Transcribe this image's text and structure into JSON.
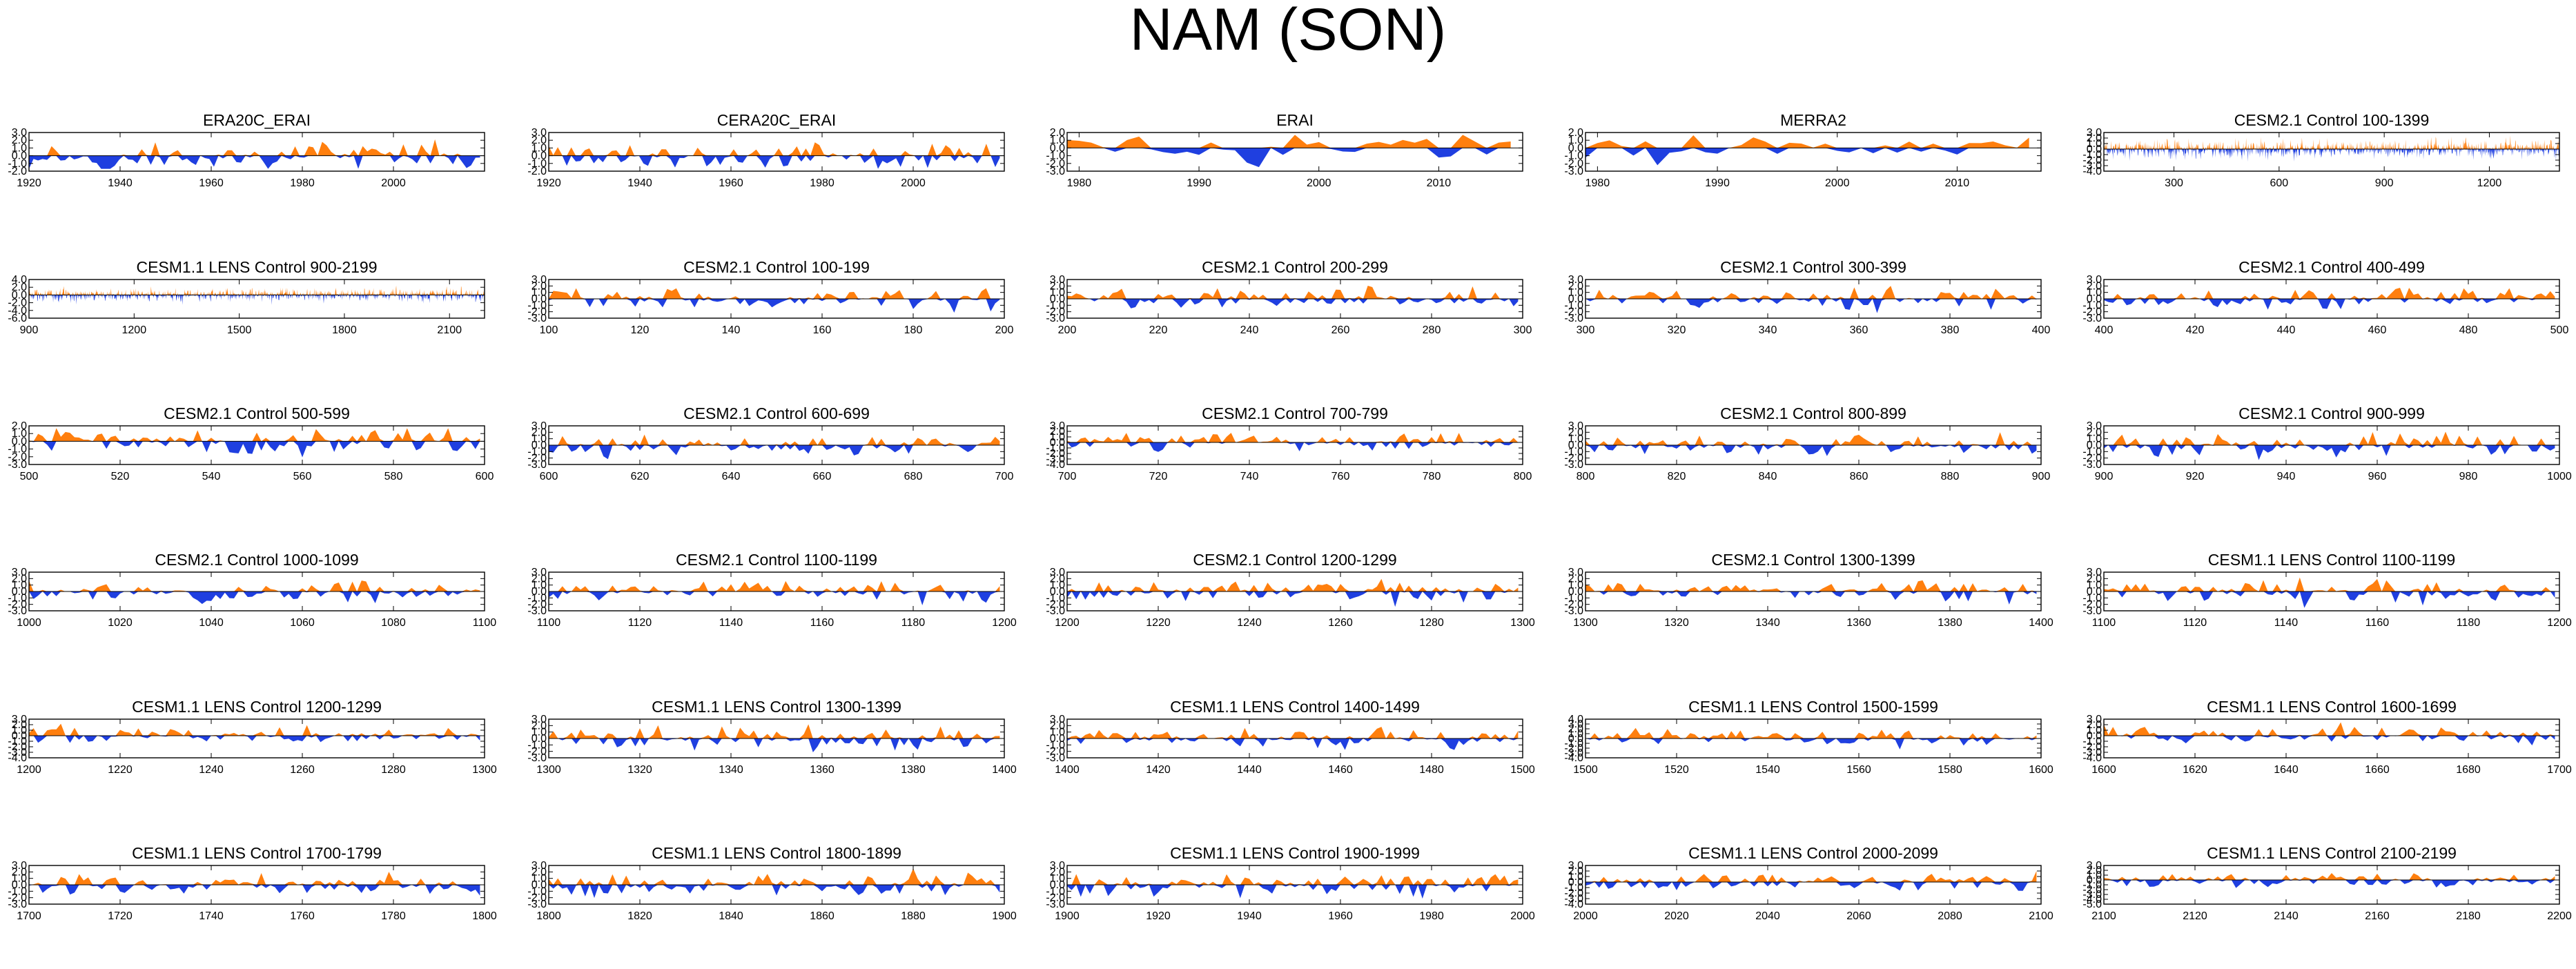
{
  "title": "NAM (SON)",
  "colors": {
    "positive": "#ff7f0e",
    "negative": "#1f3fe0",
    "frame": "#000000"
  },
  "chart_data": [
    {
      "type": "area",
      "title": "ERA20C_ERAI",
      "xlim": [
        1920,
        2020
      ],
      "ylim": [
        -2,
        3
      ],
      "yticks": [
        "3.0",
        "2.0",
        "1.0",
        "0.0",
        "-1.0",
        "-2.0"
      ],
      "xticks": [
        1920,
        1940,
        1960,
        1980,
        2000
      ],
      "x_start": 1920,
      "n": 101,
      "seed": 11,
      "scale": 1.1
    },
    {
      "type": "area",
      "title": "CERA20C_ERAI",
      "xlim": [
        1920,
        2020
      ],
      "ylim": [
        -2,
        3
      ],
      "yticks": [
        "3.0",
        "2.0",
        "1.0",
        "0.0",
        "-1.0",
        "-2.0"
      ],
      "xticks": [
        1920,
        1940,
        1960,
        1980,
        2000
      ],
      "x_start": 1920,
      "n": 101,
      "seed": 12,
      "scale": 1.1
    },
    {
      "type": "area",
      "title": "ERAI",
      "xlim": [
        1979,
        2017
      ],
      "ylim": [
        -3,
        2
      ],
      "yticks": [
        "2.0",
        "1.0",
        "0.0",
        "-1.0",
        "-2.0",
        "-3.0"
      ],
      "xticks": [
        1980,
        1990,
        2000,
        2010
      ],
      "x_start": 1979,
      "n": 38,
      "seed": 13,
      "scale": 1.0
    },
    {
      "type": "area",
      "title": "MERRA2",
      "xlim": [
        1979,
        2017
      ],
      "ylim": [
        -3,
        2
      ],
      "yticks": [
        "2.0",
        "1.0",
        "0.0",
        "-1.0",
        "-2.0",
        "-3.0"
      ],
      "xticks": [
        1980,
        1990,
        2000,
        2010
      ],
      "x_start": 1979,
      "n": 38,
      "seed": 14,
      "scale": 1.0
    },
    {
      "type": "area",
      "title": "CESM2.1 Control 100-1399",
      "xlim": [
        100,
        1400
      ],
      "ylim": [
        -4,
        3
      ],
      "yticks": [
        "3.0",
        "2.0",
        "1.0",
        "0.0",
        "-1.0",
        "-2.0",
        "-3.0",
        "-4.0"
      ],
      "xticks": [
        300,
        600,
        900,
        1200
      ],
      "x_start": 100,
      "n": 1300,
      "seed": 15,
      "scale": 1.0
    },
    {
      "type": "area",
      "title": "CESM1.1 LENS Control 900-2199",
      "xlim": [
        900,
        2200
      ],
      "ylim": [
        -6,
        4
      ],
      "yticks": [
        "4.0",
        "2.0",
        "0.0",
        "-2.0",
        "-4.0",
        "-6.0"
      ],
      "xticks": [
        900,
        1200,
        1500,
        1800,
        2100
      ],
      "x_start": 900,
      "n": 1300,
      "seed": 21,
      "scale": 1.0
    },
    {
      "type": "area",
      "title": "CESM2.1 Control 100-199",
      "xlim": [
        100,
        200
      ],
      "ylim": [
        -3,
        3
      ],
      "yticks": [
        "3.0",
        "2.0",
        "1.0",
        "0.0",
        "-1.0",
        "-2.0",
        "-3.0"
      ],
      "xticks": [
        100,
        120,
        140,
        160,
        180,
        200
      ],
      "x_start": 100,
      "n": 100,
      "seed": 22,
      "scale": 1.0
    },
    {
      "type": "area",
      "title": "CESM2.1 Control 200-299",
      "xlim": [
        200,
        300
      ],
      "ylim": [
        -3,
        3
      ],
      "yticks": [
        "3.0",
        "2.0",
        "1.0",
        "0.0",
        "-1.0",
        "-2.0",
        "-3.0"
      ],
      "xticks": [
        200,
        220,
        240,
        260,
        280,
        300
      ],
      "x_start": 200,
      "n": 100,
      "seed": 23,
      "scale": 1.0
    },
    {
      "type": "area",
      "title": "CESM2.1 Control 300-399",
      "xlim": [
        300,
        400
      ],
      "ylim": [
        -3,
        3
      ],
      "yticks": [
        "3.0",
        "2.0",
        "1.0",
        "0.0",
        "-1.0",
        "-2.0",
        "-3.0"
      ],
      "xticks": [
        300,
        320,
        340,
        360,
        380,
        400
      ],
      "x_start": 300,
      "n": 100,
      "seed": 24,
      "scale": 1.0
    },
    {
      "type": "area",
      "title": "CESM2.1 Control 400-499",
      "xlim": [
        400,
        500
      ],
      "ylim": [
        -3,
        3
      ],
      "yticks": [
        "3.0",
        "2.0",
        "1.0",
        "0.0",
        "-1.0",
        "-2.0",
        "-3.0"
      ],
      "xticks": [
        400,
        420,
        440,
        460,
        480,
        500
      ],
      "x_start": 400,
      "n": 100,
      "seed": 25,
      "scale": 1.0
    },
    {
      "type": "area",
      "title": "CESM2.1 Control 500-599",
      "xlim": [
        500,
        600
      ],
      "ylim": [
        -3,
        2
      ],
      "yticks": [
        "2.0",
        "1.0",
        "0.0",
        "-1.0",
        "-2.0",
        "-3.0"
      ],
      "xticks": [
        500,
        520,
        540,
        560,
        580,
        600
      ],
      "x_start": 500,
      "n": 100,
      "seed": 31,
      "scale": 1.0
    },
    {
      "type": "area",
      "title": "CESM2.1 Control 600-699",
      "xlim": [
        600,
        700
      ],
      "ylim": [
        -3,
        3
      ],
      "yticks": [
        "3.0",
        "2.0",
        "1.0",
        "0.0",
        "-1.0",
        "-2.0",
        "-3.0"
      ],
      "xticks": [
        600,
        620,
        640,
        660,
        680,
        700
      ],
      "x_start": 600,
      "n": 100,
      "seed": 32,
      "scale": 1.0
    },
    {
      "type": "area",
      "title": "CESM2.1 Control 700-799",
      "xlim": [
        700,
        800
      ],
      "ylim": [
        -4,
        3
      ],
      "yticks": [
        "3.0",
        "2.0",
        "1.0",
        "0.0",
        "-1.0",
        "-2.0",
        "-3.0",
        "-4.0"
      ],
      "xticks": [
        700,
        720,
        740,
        760,
        780,
        800
      ],
      "x_start": 700,
      "n": 100,
      "seed": 33,
      "scale": 1.0
    },
    {
      "type": "area",
      "title": "CESM2.1 Control 800-899",
      "xlim": [
        800,
        900
      ],
      "ylim": [
        -3,
        3
      ],
      "yticks": [
        "3.0",
        "2.0",
        "1.0",
        "0.0",
        "-1.0",
        "-2.0",
        "-3.0"
      ],
      "xticks": [
        800,
        820,
        840,
        860,
        880,
        900
      ],
      "x_start": 800,
      "n": 100,
      "seed": 34,
      "scale": 1.0
    },
    {
      "type": "area",
      "title": "CESM2.1 Control 900-999",
      "xlim": [
        900,
        1000
      ],
      "ylim": [
        -3,
        3
      ],
      "yticks": [
        "3.0",
        "2.0",
        "1.0",
        "0.0",
        "-1.0",
        "-2.0",
        "-3.0"
      ],
      "xticks": [
        900,
        920,
        940,
        960,
        980,
        1000
      ],
      "x_start": 900,
      "n": 100,
      "seed": 35,
      "scale": 1.0
    },
    {
      "type": "area",
      "title": "CESM2.1 Control 1000-1099",
      "xlim": [
        1000,
        1100
      ],
      "ylim": [
        -3,
        3
      ],
      "yticks": [
        "3.0",
        "2.0",
        "1.0",
        "0.0",
        "-1.0",
        "-2.0",
        "-3.0"
      ],
      "xticks": [
        1000,
        1020,
        1040,
        1060,
        1080,
        1100
      ],
      "x_start": 1000,
      "n": 100,
      "seed": 41,
      "scale": 1.0
    },
    {
      "type": "area",
      "title": "CESM2.1 Control 1100-1199",
      "xlim": [
        1100,
        1200
      ],
      "ylim": [
        -3,
        3
      ],
      "yticks": [
        "3.0",
        "2.0",
        "1.0",
        "0.0",
        "-1.0",
        "-2.0",
        "-3.0"
      ],
      "xticks": [
        1100,
        1120,
        1140,
        1160,
        1180,
        1200
      ],
      "x_start": 1100,
      "n": 100,
      "seed": 42,
      "scale": 1.0
    },
    {
      "type": "area",
      "title": "CESM2.1 Control 1200-1299",
      "xlim": [
        1200,
        1300
      ],
      "ylim": [
        -3,
        3
      ],
      "yticks": [
        "3.0",
        "2.0",
        "1.0",
        "0.0",
        "-1.0",
        "-2.0",
        "-3.0"
      ],
      "xticks": [
        1200,
        1220,
        1240,
        1260,
        1280,
        1300
      ],
      "x_start": 1200,
      "n": 100,
      "seed": 43,
      "scale": 1.0
    },
    {
      "type": "area",
      "title": "CESM2.1 Control 1300-1399",
      "xlim": [
        1300,
        1400
      ],
      "ylim": [
        -3,
        3
      ],
      "yticks": [
        "3.0",
        "2.0",
        "1.0",
        "0.0",
        "-1.0",
        "-2.0",
        "-3.0"
      ],
      "xticks": [
        1300,
        1320,
        1340,
        1360,
        1380,
        1400
      ],
      "x_start": 1300,
      "n": 100,
      "seed": 44,
      "scale": 1.0
    },
    {
      "type": "area",
      "title": "CESM1.1 LENS Control 1100-1199",
      "xlim": [
        1100,
        1200
      ],
      "ylim": [
        -3,
        3
      ],
      "yticks": [
        "3.0",
        "2.0",
        "1.0",
        "0.0",
        "-1.0",
        "-2.0",
        "-3.0"
      ],
      "xticks": [
        1100,
        1120,
        1140,
        1160,
        1180,
        1200
      ],
      "x_start": 1100,
      "n": 100,
      "seed": 45,
      "scale": 1.0
    },
    {
      "type": "area",
      "title": "CESM1.1 LENS Control 1200-1299",
      "xlim": [
        1200,
        1300
      ],
      "ylim": [
        -4,
        3
      ],
      "yticks": [
        "3.0",
        "2.0",
        "1.0",
        "0.0",
        "-1.0",
        "-2.0",
        "-3.0",
        "-4.0"
      ],
      "xticks": [
        1200,
        1220,
        1240,
        1260,
        1280,
        1300
      ],
      "x_start": 1200,
      "n": 100,
      "seed": 51,
      "scale": 1.0
    },
    {
      "type": "area",
      "title": "CESM1.1 LENS Control 1300-1399",
      "xlim": [
        1300,
        1400
      ],
      "ylim": [
        -3,
        3
      ],
      "yticks": [
        "3.0",
        "2.0",
        "1.0",
        "0.0",
        "-1.0",
        "-2.0",
        "-3.0"
      ],
      "xticks": [
        1300,
        1320,
        1340,
        1360,
        1380,
        1400
      ],
      "x_start": 1300,
      "n": 100,
      "seed": 52,
      "scale": 1.0
    },
    {
      "type": "area",
      "title": "CESM1.1 LENS Control 1400-1499",
      "xlim": [
        1400,
        1500
      ],
      "ylim": [
        -3,
        3
      ],
      "yticks": [
        "3.0",
        "2.0",
        "1.0",
        "0.0",
        "-1.0",
        "-2.0",
        "-3.0"
      ],
      "xticks": [
        1400,
        1420,
        1440,
        1460,
        1480,
        1500
      ],
      "x_start": 1400,
      "n": 100,
      "seed": 53,
      "scale": 1.0
    },
    {
      "type": "area",
      "title": "CESM1.1 LENS Control 1500-1599",
      "xlim": [
        1500,
        1600
      ],
      "ylim": [
        -4,
        4
      ],
      "yticks": [
        "4.0",
        "3.0",
        "2.0",
        "1.0",
        "0.0",
        "-1.0",
        "-2.0",
        "-3.0",
        "-4.0"
      ],
      "xticks": [
        1500,
        1520,
        1540,
        1560,
        1580,
        1600
      ],
      "x_start": 1500,
      "n": 100,
      "seed": 54,
      "scale": 1.0
    },
    {
      "type": "area",
      "title": "CESM1.1 LENS Control 1600-1699",
      "xlim": [
        1600,
        1700
      ],
      "ylim": [
        -4,
        3
      ],
      "yticks": [
        "3.0",
        "2.0",
        "1.0",
        "0.0",
        "-1.0",
        "-2.0",
        "-3.0",
        "-4.0"
      ],
      "xticks": [
        1600,
        1620,
        1640,
        1660,
        1680,
        1700
      ],
      "x_start": 1600,
      "n": 100,
      "seed": 55,
      "scale": 1.0
    },
    {
      "type": "area",
      "title": "CESM1.1 LENS Control 1700-1799",
      "xlim": [
        1700,
        1800
      ],
      "ylim": [
        -3,
        3
      ],
      "yticks": [
        "3.0",
        "2.0",
        "1.0",
        "0.0",
        "-1.0",
        "-2.0",
        "-3.0"
      ],
      "xticks": [
        1700,
        1720,
        1740,
        1760,
        1780,
        1800
      ],
      "x_start": 1700,
      "n": 100,
      "seed": 61,
      "scale": 1.0
    },
    {
      "type": "area",
      "title": "CESM1.1 LENS Control 1800-1899",
      "xlim": [
        1800,
        1900
      ],
      "ylim": [
        -3,
        3
      ],
      "yticks": [
        "3.0",
        "2.0",
        "1.0",
        "0.0",
        "-1.0",
        "-2.0",
        "-3.0"
      ],
      "xticks": [
        1800,
        1820,
        1840,
        1860,
        1880,
        1900
      ],
      "x_start": 1800,
      "n": 100,
      "seed": 62,
      "scale": 1.0
    },
    {
      "type": "area",
      "title": "CESM1.1 LENS Control 1900-1999",
      "xlim": [
        1900,
        2000
      ],
      "ylim": [
        -3,
        3
      ],
      "yticks": [
        "3.0",
        "2.0",
        "1.0",
        "0.0",
        "-1.0",
        "-2.0",
        "-3.0"
      ],
      "xticks": [
        1900,
        1920,
        1940,
        1960,
        1980,
        2000
      ],
      "x_start": 1900,
      "n": 100,
      "seed": 63,
      "scale": 1.0
    },
    {
      "type": "area",
      "title": "CESM1.1 LENS Control 2000-2099",
      "xlim": [
        2000,
        2100
      ],
      "ylim": [
        -4,
        3
      ],
      "yticks": [
        "3.0",
        "2.0",
        "1.0",
        "0.0",
        "-1.0",
        "-2.0",
        "-3.0",
        "-4.0"
      ],
      "xticks": [
        2000,
        2020,
        2040,
        2060,
        2080,
        2100
      ],
      "x_start": 2000,
      "n": 100,
      "seed": 64,
      "scale": 1.0
    },
    {
      "type": "area",
      "title": "CESM1.1 LENS Control 2100-2199",
      "xlim": [
        2100,
        2200
      ],
      "ylim": [
        -5,
        3
      ],
      "yticks": [
        "3.0",
        "2.0",
        "1.0",
        "0.0",
        "-1.0",
        "-2.0",
        "-3.0",
        "-4.0",
        "-5.0"
      ],
      "xticks": [
        2100,
        2120,
        2140,
        2160,
        2180,
        2200
      ],
      "x_start": 2100,
      "n": 100,
      "seed": 65,
      "scale": 1.0
    }
  ]
}
